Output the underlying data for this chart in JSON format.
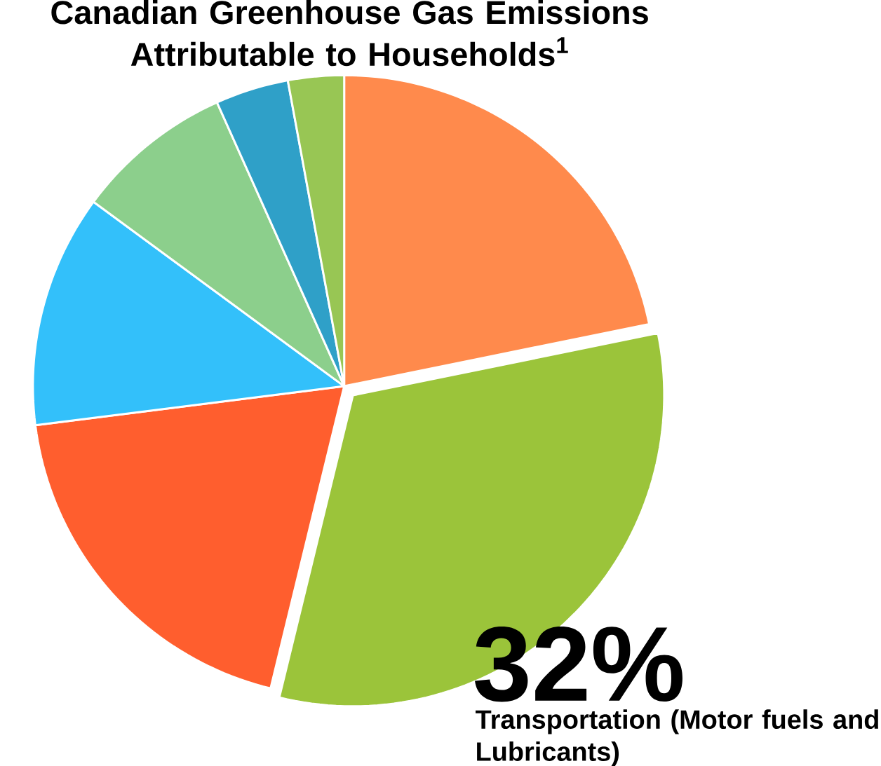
{
  "chart_data": {
    "type": "pie",
    "title": "Canadian Greenhouse Gas Emissions Attributable to Households$^{1}$",
    "categories": [
      null,
      "Transportation (Motor fuels and Lubricants)",
      null,
      null,
      null,
      null,
      null
    ],
    "values": [
      21.8,
      32,
      19.2,
      12.1,
      8.2,
      3.8,
      2.9
    ],
    "value_labels": [
      null,
      "32%",
      null,
      null,
      null,
      null,
      null
    ],
    "colors": [
      "#ff8a4c",
      "#9bc43a",
      "#ff5e2e",
      "#33c0fa",
      "#8ccf8c",
      "#2fa0c8",
      "#98c654"
    ]
  }
}
